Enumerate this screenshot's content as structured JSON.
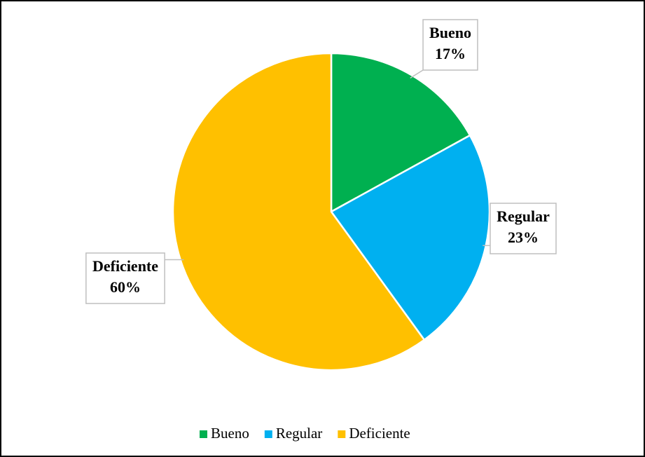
{
  "chart_data": {
    "type": "pie",
    "categories": [
      "Bueno",
      "Regular",
      "Deficiente"
    ],
    "values": [
      17,
      23,
      60
    ],
    "value_labels": [
      "17%",
      "23%",
      "60%"
    ],
    "colors": [
      "#00b050",
      "#00b0f0",
      "#ffc000"
    ],
    "legend": "bottom"
  }
}
